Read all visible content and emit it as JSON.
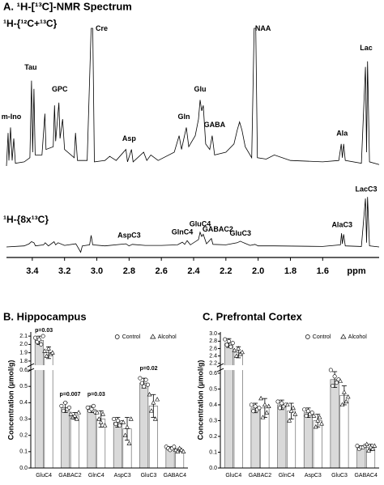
{
  "chart_data": [
    {
      "type": "spectrum",
      "title": "A. ¹H-[¹³C]-NMR Spectrum",
      "xlabel": "ppm",
      "xlim": [
        3.56,
        1.25
      ],
      "ylim": [
        0,
        100
      ],
      "xticks": [
        3.4,
        3.2,
        {
          "value": 3,
          "label": "3.0"
        },
        2.8,
        2.6,
        2.4,
        2.2,
        {
          "value": 2,
          "label": "2.0"
        },
        1.8,
        1.6
      ],
      "series": [
        {
          "name": "¹H-{¹²C+¹³C}",
          "color": "#000000",
          "x": [
            3.56,
            3.55,
            3.545,
            3.535,
            3.525,
            3.515,
            3.505,
            3.45,
            3.415,
            3.405,
            3.398,
            3.39,
            3.382,
            3.34,
            3.322,
            3.315,
            3.27,
            3.262,
            3.255,
            3.235,
            3.228,
            3.212,
            3.2,
            3.14,
            3.132,
            3.12,
            3.06,
            3.035,
            3.025,
            3.015,
            2.95,
            2.92,
            2.88,
            2.82,
            2.81,
            2.785,
            2.775,
            2.71,
            2.69,
            2.665,
            2.62,
            2.52,
            2.49,
            2.475,
            2.46,
            2.445,
            2.43,
            2.39,
            2.37,
            2.36,
            2.35,
            2.34,
            2.325,
            2.3,
            2.285,
            2.27,
            2.2,
            2.15,
            2.13,
            2.115,
            2.1,
            2.08,
            2.04,
            2.025,
            2.015,
            2.005,
            1.95,
            1.9,
            1.8,
            1.6,
            1.5,
            1.485,
            1.478,
            1.47,
            1.46,
            1.36,
            1.335,
            1.328,
            1.322,
            1.31,
            1.25
          ],
          "values": [
            0,
            24,
            4,
            28,
            4,
            20,
            2,
            3,
            6,
            62,
            10,
            56,
            8,
            8,
            38,
            12,
            14,
            44,
            18,
            46,
            20,
            34,
            12,
            6,
            24,
            4,
            4,
            100,
            100,
            3,
            4,
            7,
            4,
            12,
            3,
            12,
            3,
            10,
            4,
            8,
            4,
            10,
            22,
            12,
            20,
            28,
            14,
            22,
            34,
            48,
            40,
            44,
            16,
            12,
            22,
            8,
            10,
            16,
            26,
            32,
            26,
            14,
            6,
            100,
            100,
            6,
            5,
            8,
            4,
            3,
            4,
            16,
            6,
            16,
            4,
            2,
            72,
            10,
            76,
            3,
            1
          ],
          "annotations": [
            {
              "text": "m-Ino",
              "x": 3.53,
              "y": 32
            },
            {
              "text": "Tau",
              "x": 3.41,
              "y": 68
            },
            {
              "text": "GPC",
              "x": 3.23,
              "y": 52
            },
            {
              "text": "Cre",
              "x": 2.97,
              "y": 96
            },
            {
              "text": "Asp",
              "x": 2.8,
              "y": 16
            },
            {
              "text": "Gln",
              "x": 2.46,
              "y": 32
            },
            {
              "text": "Glu",
              "x": 2.36,
              "y": 52
            },
            {
              "text": "GABA",
              "x": 2.27,
              "y": 26
            },
            {
              "text": "NAA",
              "x": 1.97,
              "y": 96
            },
            {
              "text": "Ala",
              "x": 1.48,
              "y": 20
            },
            {
              "text": "Lac",
              "x": 1.33,
              "y": 82
            }
          ]
        },
        {
          "name": "¹H-{8x¹³C}",
          "color": "#000000",
          "x": [
            3.56,
            3.45,
            3.42,
            3.405,
            3.39,
            3.38,
            3.33,
            3.32,
            3.3,
            3.265,
            3.255,
            3.24,
            3.2,
            3.13,
            3.12,
            3.1,
            3.09,
            3.045,
            3.035,
            3.025,
            2.95,
            2.82,
            2.8,
            2.78,
            2.7,
            2.6,
            2.5,
            2.47,
            2.455,
            2.44,
            2.42,
            2.37,
            2.36,
            2.35,
            2.34,
            2.32,
            2.29,
            2.28,
            2.2,
            2.13,
            2.11,
            2.09,
            2.05,
            2.02,
            2.0,
            1.9,
            1.6,
            1.49,
            1.483,
            1.478,
            1.47,
            1.46,
            1.36,
            1.335,
            1.328,
            1.322,
            1.31,
            1.25
          ],
          "values": [
            0,
            2,
            6,
            10,
            8,
            2,
            4,
            8,
            2,
            10,
            4,
            8,
            3,
            6,
            1,
            -10,
            2,
            4,
            22,
            4,
            2,
            6,
            2,
            5,
            3,
            3,
            4,
            9,
            5,
            12,
            4,
            14,
            28,
            20,
            24,
            6,
            16,
            5,
            4,
            8,
            11,
            8,
            3,
            5,
            2,
            2,
            1,
            4,
            26,
            6,
            24,
            2,
            1,
            92,
            8,
            95,
            2,
            0
          ],
          "annotations": [
            {
              "text": "AspC3",
              "x": 2.8,
              "y": 12
            },
            {
              "text": "GlnC4",
              "x": 2.47,
              "y": 18
            },
            {
              "text": "GluC4",
              "x": 2.36,
              "y": 34
            },
            {
              "text": "GABAC2",
              "x": 2.25,
              "y": 24
            },
            {
              "text": "GluC3",
              "x": 2.11,
              "y": 16
            },
            {
              "text": "AlaC3",
              "x": 1.48,
              "y": 32
            },
            {
              "text": "LacC3",
              "x": 1.33,
              "y": 100
            }
          ]
        }
      ]
    },
    {
      "type": "bar",
      "title": "B. Hippocampus",
      "ylabel": "Concentration (µmol/g)",
      "categories": [
        "GluC4",
        "GABAC2",
        "GlnC4",
        "AspC3",
        "GluC3",
        "GABAC4"
      ],
      "ylim": [
        0,
        2.15
      ],
      "ybreak": [
        0.6,
        1.75
      ],
      "yticks": [
        {
          "value": 0,
          "label": "0.0"
        },
        0.1,
        0.2,
        0.3,
        0.4,
        0.5,
        0.6,
        1.8,
        1.9,
        {
          "value": 2,
          "label": "2.0"
        },
        2.1
      ],
      "series": [
        {
          "name": "Control",
          "color": "#d9d9d9",
          "marker": "circle",
          "values": [
            2.05,
            0.37,
            0.36,
            0.28,
            0.52,
            0.12
          ],
          "errors": [
            0.05,
            0.03,
            0.02,
            0.03,
            0.03,
            0.01
          ],
          "points": [
            [
              2.08,
              2.03,
              2.06,
              2.0,
              2.1
            ],
            [
              0.38,
              0.35,
              0.4,
              0.36,
              0.37
            ],
            [
              0.37,
              0.35,
              0.36,
              0.38,
              0.34
            ],
            [
              0.3,
              0.27,
              0.29,
              0.26,
              0.28
            ],
            [
              0.55,
              0.52,
              0.5,
              0.54,
              0.51
            ],
            [
              0.13,
              0.12,
              0.11,
              0.12,
              0.13
            ]
          ]
        },
        {
          "name": "Alcohol",
          "color": "#ffffff",
          "marker": "triangle",
          "values": [
            1.9,
            0.32,
            0.3,
            0.24,
            0.38,
            0.11
          ],
          "errors": [
            0.07,
            0.02,
            0.05,
            0.07,
            0.07,
            0.01
          ],
          "points": [
            [
              1.92,
              1.86,
              1.95,
              1.88,
              1.9
            ],
            [
              0.33,
              0.31,
              0.32,
              0.3,
              0.34
            ],
            [
              0.34,
              0.3,
              0.28,
              0.33,
              0.26
            ],
            [
              0.28,
              0.2,
              0.25,
              0.15,
              0.3
            ],
            [
              0.45,
              0.35,
              0.4,
              0.3,
              0.42
            ],
            [
              0.11,
              0.1,
              0.12,
              0.11,
              0.1
            ]
          ]
        }
      ],
      "annotations": [
        {
          "text": "p=0.03",
          "x": "GluC4",
          "y": 2.13
        },
        {
          "text": "p=0.007",
          "x": "GABAC2",
          "y": 0.43
        },
        {
          "text": "p=0.03",
          "x": "GlnC4",
          "y": 0.43
        },
        {
          "text": "p=0.02",
          "x": "GluC3",
          "y": 0.59
        }
      ]
    },
    {
      "type": "bar",
      "title": "C. Prefrontal Cortex",
      "ylabel": "Concentration (µmol/g)",
      "categories": [
        "GluC4",
        "GABAC2",
        "GlnC4",
        "AspC3",
        "GluC3",
        "GABAC4"
      ],
      "ylim": [
        0,
        3.05
      ],
      "ybreak": [
        0.62,
        2.15
      ],
      "yticks": [
        {
          "value": 0,
          "label": "0.0"
        },
        0.1,
        0.2,
        0.3,
        0.4,
        0.5,
        0.6,
        2.2,
        2.4,
        2.6,
        2.8,
        {
          "value": 3,
          "label": "3.0"
        }
      ],
      "series": [
        {
          "name": "Control",
          "color": "#d9d9d9",
          "marker": "circle",
          "values": [
            2.75,
            0.38,
            0.4,
            0.35,
            0.56,
            0.13
          ],
          "errors": [
            0.12,
            0.03,
            0.03,
            0.03,
            0.05,
            0.01
          ],
          "points": [
            [
              2.85,
              2.7,
              2.8,
              2.65,
              2.75
            ],
            [
              0.4,
              0.36,
              0.39,
              0.37,
              0.38
            ],
            [
              0.42,
              0.38,
              0.41,
              0.39,
              0.4
            ],
            [
              0.37,
              0.33,
              0.36,
              0.34,
              0.35
            ],
            [
              0.62,
              0.52,
              0.58,
              0.54,
              0.56
            ],
            [
              0.14,
              0.12,
              0.13,
              0.13,
              0.14
            ]
          ]
        },
        {
          "name": "Alcohol",
          "color": "#ffffff",
          "marker": "triangle",
          "values": [
            2.5,
            0.38,
            0.36,
            0.3,
            0.46,
            0.13
          ],
          "errors": [
            0.15,
            0.06,
            0.05,
            0.04,
            0.06,
            0.02
          ],
          "points": [
            [
              2.55,
              2.4,
              2.6,
              2.45,
              2.5
            ],
            [
              0.44,
              0.32,
              0.4,
              0.35,
              0.39
            ],
            [
              0.4,
              0.3,
              0.36,
              0.38,
              0.34
            ],
            [
              0.33,
              0.26,
              0.3,
              0.32,
              0.28
            ],
            [
              0.55,
              0.4,
              0.48,
              0.42,
              0.45
            ],
            [
              0.15,
              0.11,
              0.13,
              0.12,
              0.14
            ]
          ]
        }
      ]
    }
  ]
}
